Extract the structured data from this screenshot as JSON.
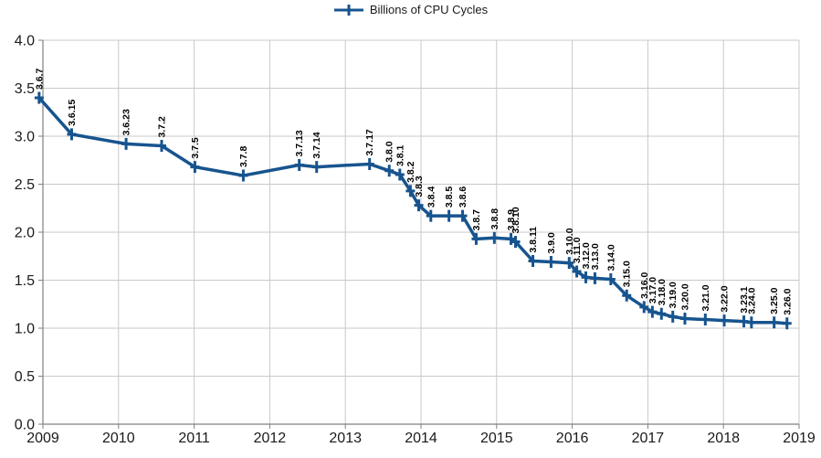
{
  "chart_data": {
    "type": "line",
    "title": "",
    "legend": {
      "position": "top-center",
      "entries": [
        "Billions of CPU Cycles"
      ]
    },
    "grid": true,
    "xlabel": "",
    "ylabel": "",
    "xlim": [
      2009,
      2019
    ],
    "ylim": [
      0.0,
      4.0
    ],
    "x_ticks": [
      2009,
      2010,
      2011,
      2012,
      2013,
      2014,
      2015,
      2016,
      2017,
      2018,
      2019
    ],
    "y_ticks": [
      0.0,
      0.5,
      1.0,
      1.5,
      2.0,
      2.5,
      3.0,
      3.5,
      4.0
    ],
    "y_tick_decimals": 1,
    "colors": {
      "series": "#17548f",
      "gridline": "#c9c9c9",
      "axis": "#808080",
      "label": "#000000",
      "tick_label": "#1a1a1a"
    },
    "series": [
      {
        "name": "Billions of CPU Cycles",
        "color": "#17548f",
        "marker": "plus",
        "points": [
          {
            "label": "3.6.7",
            "x": 2008.95,
            "y": 3.4
          },
          {
            "label": "3.6.15",
            "x": 2009.38,
            "y": 3.02
          },
          {
            "label": "3.6.23",
            "x": 2010.1,
            "y": 2.92
          },
          {
            "label": "3.7.2",
            "x": 2010.57,
            "y": 2.9
          },
          {
            "label": "3.7.5",
            "x": 2011.01,
            "y": 2.68
          },
          {
            "label": "3.7.8",
            "x": 2011.65,
            "y": 2.59
          },
          {
            "label": "3.7.13",
            "x": 2012.39,
            "y": 2.7
          },
          {
            "label": "3.7.14",
            "x": 2012.62,
            "y": 2.68
          },
          {
            "label": "3.7.17",
            "x": 2013.32,
            "y": 2.71
          },
          {
            "label": "3.8.0",
            "x": 2013.58,
            "y": 2.64
          },
          {
            "label": "3.8.1",
            "x": 2013.72,
            "y": 2.6
          },
          {
            "label": "3.8.2",
            "x": 2013.86,
            "y": 2.43
          },
          {
            "label": "3.8.3",
            "x": 2013.97,
            "y": 2.28
          },
          {
            "label": "3.8.4",
            "x": 2014.13,
            "y": 2.17
          },
          {
            "label": "3.8.5",
            "x": 2014.37,
            "y": 2.17
          },
          {
            "label": "3.8.6",
            "x": 2014.55,
            "y": 2.17
          },
          {
            "label": "3.8.7",
            "x": 2014.73,
            "y": 1.93
          },
          {
            "label": "3.8.8",
            "x": 2014.97,
            "y": 1.94
          },
          {
            "label": "3.8.9",
            "x": 2015.19,
            "y": 1.93
          },
          {
            "label": "3.8.10",
            "x": 2015.25,
            "y": 1.9
          },
          {
            "label": "3.8.11",
            "x": 2015.48,
            "y": 1.7
          },
          {
            "label": "3.9.0",
            "x": 2015.72,
            "y": 1.69
          },
          {
            "label": "3.10.0",
            "x": 2015.96,
            "y": 1.68
          },
          {
            "label": "3.11.0",
            "x": 2016.06,
            "y": 1.59
          },
          {
            "label": "3.12.0",
            "x": 2016.18,
            "y": 1.53
          },
          {
            "label": "3.13.0",
            "x": 2016.3,
            "y": 1.52
          },
          {
            "label": "3.14.0",
            "x": 2016.51,
            "y": 1.51
          },
          {
            "label": "3.15.0",
            "x": 2016.72,
            "y": 1.34
          },
          {
            "label": "3.16.0",
            "x": 2016.95,
            "y": 1.22
          },
          {
            "label": "3.17.0",
            "x": 2017.06,
            "y": 1.17
          },
          {
            "label": "3.18.0",
            "x": 2017.18,
            "y": 1.15
          },
          {
            "label": "3.19.0",
            "x": 2017.33,
            "y": 1.12
          },
          {
            "label": "3.20.0",
            "x": 2017.49,
            "y": 1.1
          },
          {
            "label": "3.21.0",
            "x": 2017.76,
            "y": 1.09
          },
          {
            "label": "3.22.0",
            "x": 2018.01,
            "y": 1.08
          },
          {
            "label": "3.23.1",
            "x": 2018.27,
            "y": 1.07
          },
          {
            "label": "3.24.0",
            "x": 2018.37,
            "y": 1.06
          },
          {
            "label": "3.25.0",
            "x": 2018.67,
            "y": 1.06
          },
          {
            "label": "3.26.0",
            "x": 2018.84,
            "y": 1.05
          }
        ]
      }
    ]
  }
}
